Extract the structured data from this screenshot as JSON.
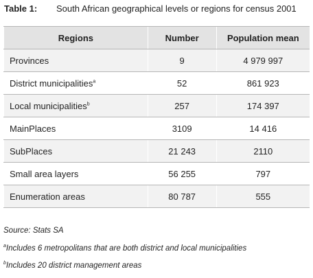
{
  "caption": {
    "label": "Table 1:",
    "title": "South African geographical levels or regions for census 2001"
  },
  "table": {
    "header": [
      "Regions",
      "Number",
      "Population mean"
    ],
    "rows": [
      {
        "region": "Provinces",
        "number": "9",
        "mean": "4 979 997"
      },
      {
        "region": "District municipalities",
        "note": "a",
        "number": "52",
        "mean": "861 923"
      },
      {
        "region": "Local municipalities",
        "note": "b",
        "number": "257",
        "mean": "174 397"
      },
      {
        "region": "MainPlaces",
        "number": "3109",
        "mean": "14 416"
      },
      {
        "region": "SubPlaces",
        "number": "21 243",
        "mean": "2110"
      },
      {
        "region": "Small area layers",
        "number": "56 255",
        "mean": "797"
      },
      {
        "region": "Enumeration areas",
        "number": "80 787",
        "mean": "555"
      }
    ]
  },
  "source": "Source: Stats SA",
  "notes": [
    {
      "mark": "a",
      "text": "Includes 6 metropolitans that are both district and local municipalities"
    },
    {
      "mark": "b",
      "text": "Includes 20 district management areas"
    }
  ]
}
